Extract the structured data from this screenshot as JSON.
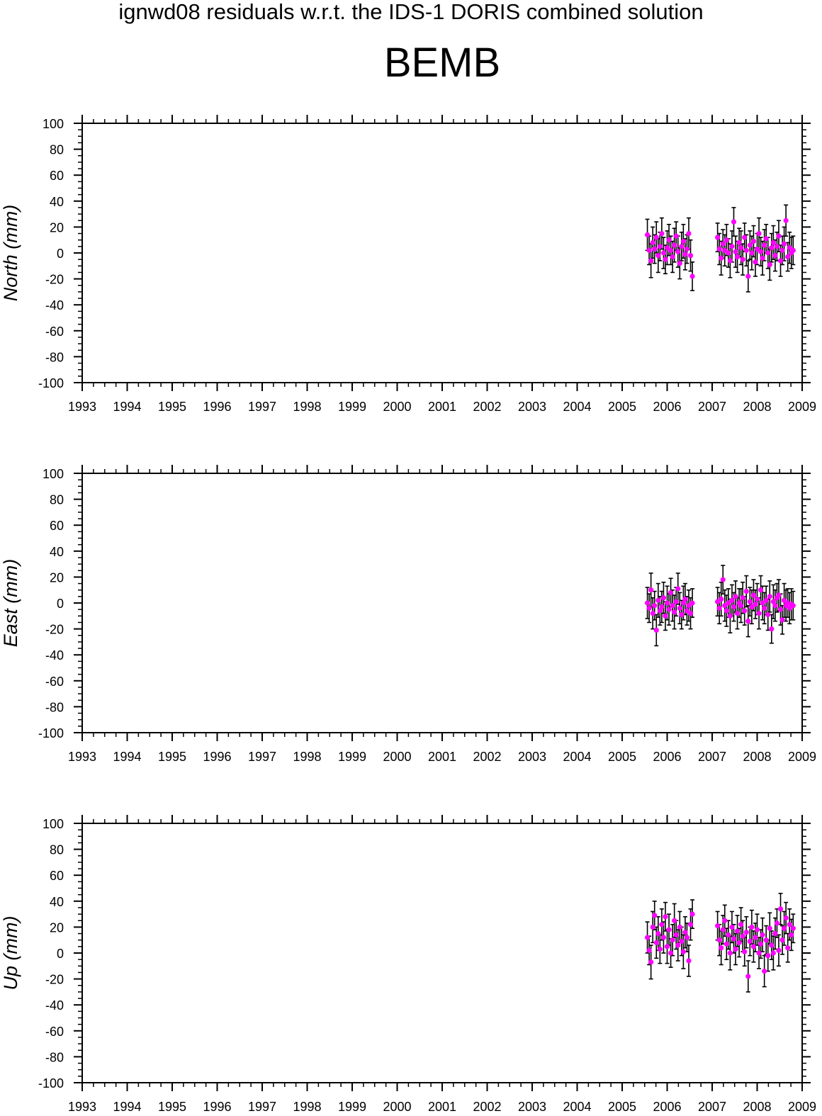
{
  "figure": {
    "suptitle": "ignwd08 residuals w.r.t. the IDS-1 DORIS combined solution",
    "station": "BEMB"
  },
  "chart_data": [
    {
      "type": "scatter",
      "ylabel": "North (mm)",
      "xlim": [
        1993,
        2009
      ],
      "ylim": [
        -100,
        100
      ],
      "x_ticks": [
        1993,
        1994,
        1995,
        1996,
        1997,
        1998,
        1999,
        2000,
        2001,
        2002,
        2003,
        2004,
        2005,
        2006,
        2007,
        2008,
        2009
      ],
      "y_ticks": [
        -100,
        -80,
        -60,
        -40,
        -20,
        0,
        20,
        40,
        60,
        80,
        100
      ],
      "marker_color": "#ff00ff",
      "errorbar_color": "#000000",
      "series": [
        {
          "x": [
            2005.56,
            2005.6,
            2005.64,
            2005.68,
            2005.72,
            2005.76,
            2005.8,
            2005.84,
            2005.88,
            2005.92,
            2005.96,
            2006.0,
            2006.04,
            2006.08,
            2006.12,
            2006.16,
            2006.2,
            2006.24,
            2006.28,
            2006.32,
            2006.36,
            2006.4,
            2006.44,
            2006.48,
            2006.52,
            2006.56,
            2007.12,
            2007.16,
            2007.2,
            2007.24,
            2007.28,
            2007.32,
            2007.36,
            2007.4,
            2007.44,
            2007.48,
            2007.52,
            2007.56,
            2007.6,
            2007.64,
            2007.68,
            2007.72,
            2007.76,
            2007.8,
            2007.84,
            2007.88,
            2007.92,
            2007.96,
            2008.0,
            2008.04,
            2008.08,
            2008.12,
            2008.16,
            2008.2,
            2008.24,
            2008.28,
            2008.32,
            2008.36,
            2008.4,
            2008.44,
            2008.48,
            2008.52,
            2008.56,
            2008.6,
            2008.64,
            2008.68,
            2008.72,
            2008.76,
            2008.8
          ],
          "y": [
            14,
            2,
            -6,
            8,
            3,
            12,
            -2,
            5,
            15,
            0,
            -5,
            4,
            10,
            2,
            -3,
            6,
            13,
            1,
            -8,
            5,
            9,
            -1,
            3,
            15,
            -2,
            -18,
            12,
            3,
            -4,
            7,
            2,
            10,
            0,
            -6,
            5,
            24,
            1,
            -3,
            8,
            4,
            -5,
            12,
            2,
            -18,
            6,
            0,
            9,
            -7,
            3,
            15,
            1,
            -4,
            6,
            11,
            0,
            -9,
            4,
            8,
            -2,
            5,
            13,
            -6,
            2,
            7,
            25,
            -3,
            4,
            0,
            2
          ],
          "err": [
            12,
            11,
            13,
            12,
            11,
            12,
            13,
            11,
            12,
            12,
            11,
            13,
            12,
            11,
            12,
            13,
            11,
            12,
            12,
            11,
            13,
            12,
            11,
            12,
            12,
            11,
            11,
            12,
            13,
            11,
            12,
            12,
            11,
            13,
            12,
            11,
            12,
            12,
            11,
            13,
            12,
            11,
            12,
            12,
            11,
            13,
            12,
            11,
            12,
            12,
            11,
            13,
            12,
            11,
            12,
            12,
            11,
            13,
            12,
            11,
            12,
            12,
            11,
            13,
            12,
            11,
            12,
            12,
            11
          ]
        }
      ]
    },
    {
      "type": "scatter",
      "ylabel": "East (mm)",
      "xlim": [
        1993,
        2009
      ],
      "ylim": [
        -100,
        100
      ],
      "x_ticks": [
        1993,
        1994,
        1995,
        1996,
        1997,
        1998,
        1999,
        2000,
        2001,
        2002,
        2003,
        2004,
        2005,
        2006,
        2007,
        2008,
        2009
      ],
      "y_ticks": [
        -100,
        -80,
        -60,
        -40,
        -20,
        0,
        20,
        40,
        60,
        80,
        100
      ],
      "marker_color": "#ff00ff",
      "errorbar_color": "#000000",
      "series": [
        {
          "x": [
            2005.56,
            2005.6,
            2005.64,
            2005.68,
            2005.72,
            2005.76,
            2005.8,
            2005.84,
            2005.88,
            2005.92,
            2005.96,
            2006.0,
            2006.04,
            2006.08,
            2006.12,
            2006.16,
            2006.2,
            2006.24,
            2006.28,
            2006.32,
            2006.36,
            2006.4,
            2006.44,
            2006.48,
            2006.52,
            2006.56,
            2007.12,
            2007.16,
            2007.2,
            2007.24,
            2007.28,
            2007.32,
            2007.36,
            2007.4,
            2007.44,
            2007.48,
            2007.52,
            2007.56,
            2007.6,
            2007.64,
            2007.68,
            2007.72,
            2007.76,
            2007.8,
            2007.84,
            2007.88,
            2007.92,
            2007.96,
            2008.0,
            2008.04,
            2008.08,
            2008.12,
            2008.16,
            2008.2,
            2008.24,
            2008.28,
            2008.32,
            2008.36,
            2008.4,
            2008.44,
            2008.48,
            2008.52,
            2008.56,
            2008.6,
            2008.64,
            2008.68,
            2008.72,
            2008.76,
            2008.8
          ],
          "y": [
            0,
            -4,
            10,
            -8,
            -2,
            -21,
            2,
            -6,
            -3,
            4,
            -10,
            0,
            -5,
            8,
            -2,
            -7,
            1,
            11,
            -4,
            -9,
            0,
            3,
            -6,
            -2,
            -8,
            0,
            1,
            -4,
            3,
            18,
            -2,
            -6,
            0,
            -10,
            2,
            -3,
            5,
            -8,
            0,
            -2,
            4,
            -6,
            9,
            -14,
            1,
            -3,
            6,
            -1,
            3,
            -8,
            10,
            0,
            -4,
            2,
            -9,
            5,
            -20,
            1,
            -2,
            4,
            6,
            -5,
            -13,
            2,
            -2,
            0,
            -4,
            -1,
            -2
          ],
          "err": [
            12,
            11,
            13,
            12,
            11,
            12,
            13,
            11,
            12,
            12,
            11,
            13,
            12,
            11,
            12,
            13,
            11,
            12,
            12,
            11,
            13,
            12,
            11,
            12,
            12,
            11,
            11,
            12,
            13,
            11,
            12,
            12,
            11,
            13,
            12,
            11,
            12,
            12,
            11,
            13,
            12,
            11,
            12,
            12,
            11,
            13,
            12,
            11,
            12,
            12,
            11,
            13,
            12,
            11,
            12,
            12,
            11,
            13,
            12,
            11,
            12,
            12,
            11,
            13,
            12,
            11,
            12,
            12,
            11
          ]
        }
      ]
    },
    {
      "type": "scatter",
      "ylabel": "Up (mm)",
      "xlim": [
        1993,
        2009
      ],
      "ylim": [
        -100,
        100
      ],
      "x_ticks": [
        1993,
        1994,
        1995,
        1996,
        1997,
        1998,
        1999,
        2000,
        2001,
        2002,
        2003,
        2004,
        2005,
        2006,
        2007,
        2008,
        2009
      ],
      "y_ticks": [
        -100,
        -80,
        -60,
        -40,
        -20,
        0,
        20,
        40,
        60,
        80,
        100
      ],
      "marker_color": "#ff00ff",
      "errorbar_color": "#000000",
      "series": [
        {
          "x": [
            2005.56,
            2005.6,
            2005.64,
            2005.68,
            2005.72,
            2005.76,
            2005.8,
            2005.84,
            2005.88,
            2005.92,
            2005.96,
            2006.0,
            2006.04,
            2006.08,
            2006.12,
            2006.16,
            2006.2,
            2006.24,
            2006.28,
            2006.32,
            2006.36,
            2006.4,
            2006.44,
            2006.48,
            2006.52,
            2006.56,
            2007.12,
            2007.16,
            2007.2,
            2007.24,
            2007.28,
            2007.32,
            2007.36,
            2007.4,
            2007.44,
            2007.48,
            2007.52,
            2007.56,
            2007.6,
            2007.64,
            2007.68,
            2007.72,
            2007.76,
            2007.8,
            2007.84,
            2007.88,
            2007.92,
            2007.96,
            2008.0,
            2008.04,
            2008.08,
            2008.12,
            2008.16,
            2008.2,
            2008.24,
            2008.28,
            2008.32,
            2008.36,
            2008.4,
            2008.44,
            2008.48,
            2008.52,
            2008.56,
            2008.6,
            2008.64,
            2008.68,
            2008.72,
            2008.76,
            2008.8
          ],
          "y": [
            12,
            2,
            -7,
            20,
            29,
            8,
            15,
            3,
            22,
            12,
            28,
            5,
            18,
            0,
            10,
            25,
            14,
            6,
            20,
            9,
            1,
            16,
            12,
            -6,
            22,
            30,
            21,
            10,
            4,
            18,
            25,
            7,
            14,
            0,
            20,
            11,
            3,
            17,
            8,
            22,
            13,
            1,
            16,
            -18,
            9,
            20,
            5,
            12,
            18,
            0,
            7,
            14,
            -14,
            10,
            -2,
            19,
            6,
            0,
            15,
            23,
            2,
            34,
            10,
            19,
            27,
            4,
            22,
            14,
            19
          ],
          "err": [
            12,
            11,
            13,
            12,
            11,
            12,
            13,
            11,
            12,
            12,
            11,
            13,
            12,
            11,
            12,
            13,
            11,
            12,
            12,
            11,
            13,
            12,
            11,
            12,
            12,
            11,
            11,
            12,
            13,
            11,
            12,
            12,
            11,
            13,
            12,
            11,
            12,
            12,
            11,
            13,
            12,
            11,
            12,
            12,
            11,
            13,
            12,
            11,
            12,
            12,
            11,
            13,
            12,
            11,
            12,
            12,
            11,
            13,
            12,
            11,
            12,
            12,
            11,
            13,
            12,
            11,
            12,
            12,
            11
          ]
        }
      ]
    }
  ]
}
